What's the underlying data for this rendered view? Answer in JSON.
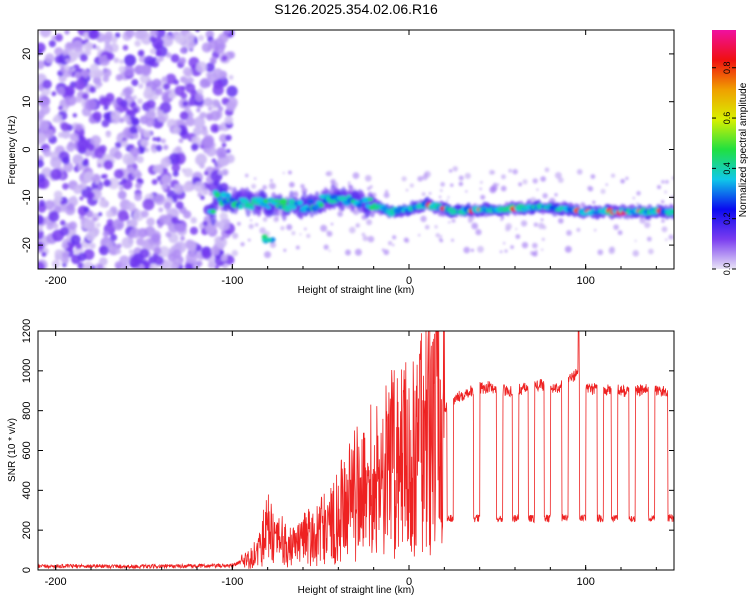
{
  "title": "S126.2025.354.02.06.R16",
  "chart_data": [
    {
      "type": "heatmap",
      "xlabel": "Height of straight line (km)",
      "ylabel": "Frequency (Hz)",
      "xlim": [
        -210,
        150
      ],
      "ylim": [
        -25,
        25
      ],
      "xticks": [
        -200,
        -100,
        0,
        100
      ],
      "yticks": [
        -20,
        -10,
        0,
        10,
        20
      ],
      "colorbar": {
        "label": "Normalized spectral amplitude",
        "range": [
          0.0,
          0.95
        ],
        "ticks": [
          0.0,
          0.2,
          0.4,
          0.6,
          0.8
        ],
        "colors": [
          "#e9e4f6",
          "#7a3cf0",
          "#0a0af0",
          "#10c8e8",
          "#20e040",
          "#d8f000",
          "#f0a000",
          "#f01010",
          "#f010a0"
        ]
      },
      "features": {
        "noise_region_x": [
          -210,
          -100
        ],
        "signal_track": [
          {
            "x": -110,
            "f": -10
          },
          {
            "x": -95,
            "f": -11
          },
          {
            "x": -80,
            "f": -11.5
          },
          {
            "x": -60,
            "f": -12
          },
          {
            "x": -40,
            "f": -10
          },
          {
            "x": -25,
            "f": -11
          },
          {
            "x": -10,
            "f": -13
          },
          {
            "x": 0,
            "f": -12.5
          },
          {
            "x": 10,
            "f": -11.5
          },
          {
            "x": 25,
            "f": -13
          },
          {
            "x": 50,
            "f": -12.5
          },
          {
            "x": 75,
            "f": -12
          },
          {
            "x": 100,
            "f": -13
          },
          {
            "x": 125,
            "f": -13
          },
          {
            "x": 150,
            "f": -13
          }
        ],
        "secondary_blob": {
          "x": -80,
          "f": -19
        }
      }
    },
    {
      "type": "line",
      "xlabel": "Height of straight line (km)",
      "ylabel": "SNR (10 * v/v)",
      "xlim": [
        -210,
        150
      ],
      "ylim": [
        0,
        1200
      ],
      "xticks": [
        -200,
        -100,
        0,
        100
      ],
      "yticks": [
        0,
        200,
        400,
        600,
        800,
        1000,
        1200
      ],
      "series": [
        {
          "name": "SNR",
          "color": "#ee2222",
          "x": [
            -210,
            -180,
            -150,
            -120,
            -100,
            -90,
            -85,
            -80,
            -75,
            -70,
            -65,
            -60,
            -55,
            -50,
            -45,
            -40,
            -35,
            -30,
            -25,
            -20,
            -15,
            -10,
            -5,
            0,
            5,
            10,
            15,
            20,
            25,
            30,
            35,
            40,
            45,
            50,
            55,
            60,
            65,
            70,
            75,
            80,
            85,
            90,
            95,
            100,
            105,
            110,
            115,
            120,
            125,
            130,
            135,
            140,
            145,
            150
          ],
          "y": [
            18,
            20,
            17,
            20,
            22,
            60,
            120,
            220,
            150,
            140,
            110,
            150,
            170,
            200,
            220,
            280,
            320,
            380,
            410,
            480,
            500,
            540,
            580,
            600,
            620,
            660,
            720,
            800,
            850,
            880,
            900,
            910,
            920,
            910,
            900,
            905,
            910,
            920,
            930,
            910,
            920,
            950,
            990,
            900,
            910,
            900,
            905,
            900,
            895,
            900,
            905,
            900,
            895,
            900
          ],
          "dropouts_x": [
            25,
            40,
            53,
            62,
            71,
            80,
            90,
            100,
            110,
            118,
            128,
            139,
            150
          ],
          "dropout_level": 260,
          "peak": {
            "x": 96,
            "y": 1200
          }
        }
      ]
    }
  ]
}
